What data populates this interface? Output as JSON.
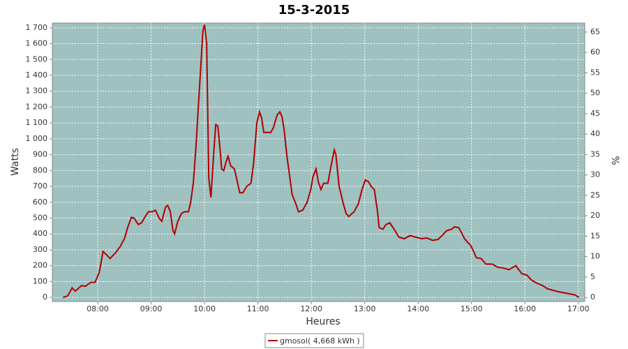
{
  "chart_data": {
    "type": "line",
    "title": "15-3-2015",
    "xlabel": "Heures",
    "ylabel": "Watts",
    "y2label": "%",
    "x": [
      7.35,
      7.44,
      7.52,
      7.58,
      7.7,
      7.77,
      7.87,
      7.95,
      8.03,
      8.1,
      8.16,
      8.23,
      8.33,
      8.42,
      8.5,
      8.56,
      8.63,
      8.68,
      8.76,
      8.82,
      8.89,
      8.95,
      9.02,
      9.08,
      9.15,
      9.2,
      9.27,
      9.31,
      9.36,
      9.41,
      9.44,
      9.5,
      9.57,
      9.63,
      9.7,
      9.74,
      9.79,
      9.84,
      9.88,
      9.92,
      9.97,
      10.0,
      10.04,
      10.08,
      10.12,
      10.17,
      10.21,
      10.25,
      10.3,
      10.32,
      10.36,
      10.4,
      10.44,
      10.49,
      10.56,
      10.62,
      10.66,
      10.72,
      10.79,
      10.87,
      10.92,
      10.98,
      11.03,
      11.07,
      11.11,
      11.19,
      11.24,
      11.29,
      11.36,
      11.41,
      11.45,
      11.49,
      11.54,
      11.58,
      11.64,
      11.71,
      11.76,
      11.84,
      11.92,
      11.99,
      12.03,
      12.09,
      12.13,
      12.18,
      12.23,
      12.31,
      12.37,
      12.43,
      12.46,
      12.52,
      12.6,
      12.65,
      12.7,
      12.8,
      12.88,
      12.95,
      13.01,
      13.07,
      13.12,
      13.18,
      13.24,
      13.27,
      13.34,
      13.4,
      13.47,
      13.55,
      13.64,
      13.74,
      13.85,
      13.95,
      14.07,
      14.16,
      14.27,
      14.37,
      14.45,
      14.53,
      14.63,
      14.68,
      14.76,
      14.81,
      14.87,
      14.92,
      14.98,
      15.04,
      15.09,
      15.18,
      15.27,
      15.39,
      15.49,
      15.6,
      15.7,
      15.83,
      15.94,
      16.04,
      16.12,
      16.22,
      16.33,
      16.42,
      16.52,
      16.64,
      16.75,
      16.85,
      16.94,
      17.01
    ],
    "series": [
      {
        "name": "gmosol( 4,668 kWh )",
        "color": "#b00000",
        "values": [
          0,
          10,
          60,
          40,
          75,
          70,
          95,
          95,
          160,
          290,
          270,
          245,
          280,
          320,
          370,
          440,
          505,
          500,
          460,
          470,
          510,
          540,
          540,
          550,
          500,
          480,
          570,
          580,
          540,
          420,
          400,
          480,
          530,
          540,
          540,
          600,
          720,
          950,
          1180,
          1400,
          1680,
          1720,
          1600,
          750,
          630,
          900,
          1090,
          1080,
          900,
          810,
          800,
          850,
          890,
          830,
          810,
          720,
          660,
          660,
          700,
          720,
          850,
          1100,
          1170,
          1130,
          1040,
          1040,
          1040,
          1070,
          1150,
          1170,
          1140,
          1060,
          900,
          800,
          650,
          590,
          540,
          550,
          600,
          680,
          760,
          810,
          730,
          680,
          720,
          720,
          830,
          930,
          900,
          700,
          590,
          530,
          510,
          540,
          590,
          680,
          740,
          730,
          700,
          680,
          540,
          440,
          430,
          460,
          470,
          430,
          380,
          370,
          390,
          380,
          370,
          375,
          360,
          365,
          390,
          420,
          430,
          445,
          440,
          410,
          370,
          350,
          330,
          290,
          250,
          245,
          210,
          210,
          190,
          185,
          175,
          200,
          150,
          140,
          110,
          90,
          75,
          55,
          45,
          35,
          28,
          22,
          15,
          0
        ]
      }
    ],
    "xlim": [
      7.15,
      17.12
    ],
    "xticks": [
      {
        "value": 8,
        "label": "08:00"
      },
      {
        "value": 9,
        "label": "09:00"
      },
      {
        "value": 10,
        "label": "10:00"
      },
      {
        "value": 11,
        "label": "11:00"
      },
      {
        "value": 12,
        "label": "12:00"
      },
      {
        "value": 13,
        "label": "13:00"
      },
      {
        "value": 14,
        "label": "14:00"
      },
      {
        "value": 15,
        "label": "15:00"
      },
      {
        "value": 16,
        "label": "16:00"
      },
      {
        "value": 17,
        "label": "17:00"
      }
    ],
    "ylim": [
      -26,
      1730
    ],
    "yticks": [
      0,
      100,
      200,
      300,
      400,
      500,
      600,
      700,
      800,
      900,
      {
        "value": 1000,
        "label": "1 000"
      },
      {
        "value": 1100,
        "label": "1 100"
      },
      {
        "value": 1200,
        "label": "1 200"
      },
      {
        "value": 1300,
        "label": "1 300"
      },
      {
        "value": 1400,
        "label": "1 400"
      },
      {
        "value": 1500,
        "label": "1 500"
      },
      {
        "value": 1600,
        "label": "1 600"
      },
      {
        "value": 1700,
        "label": "1 700"
      }
    ],
    "y2lim": [
      -1,
      67.2
    ],
    "y2ticks": [
      0,
      5,
      10,
      15,
      20,
      25,
      30,
      35,
      40,
      45,
      50,
      55,
      60,
      65
    ],
    "grid": true,
    "legend": "bottom"
  }
}
